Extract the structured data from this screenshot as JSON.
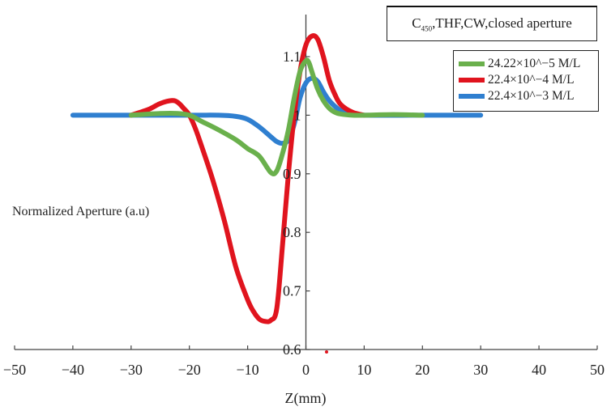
{
  "chart_data": {
    "type": "line",
    "title_main": "C",
    "title_sub": "450",
    "title_rest": ",THF,CW,closed aperture",
    "xlabel": "Z(mm)",
    "ylabel": "Normalized Aperture (a.u)",
    "xlim": [
      -50,
      50
    ],
    "ylim": [
      0.6,
      1.15
    ],
    "x_ticks": [
      -50,
      -40,
      -30,
      -20,
      -10,
      0,
      10,
      20,
      30,
      40,
      50
    ],
    "x_tick_labels": [
      "−50",
      "−40",
      "−30",
      "−20",
      "−10",
      "0",
      "10",
      "20",
      "30",
      "40",
      "50"
    ],
    "y_ticks": [
      0.6,
      0.7,
      0.8,
      0.9,
      1.0,
      1.1
    ],
    "y_tick_labels": [
      "0.6",
      "0.7",
      "0.8",
      "0.9",
      "1",
      "1.1"
    ],
    "grid": false,
    "legend_position": "top-right",
    "series": [
      {
        "name": "24.22×10^−5 M/L",
        "color": "#6ab04c",
        "x": [
          -30,
          -25,
          -22,
          -20,
          -18,
          -15,
          -12,
          -10,
          -8,
          -6,
          -5,
          -4,
          -3,
          -2,
          -1,
          0,
          0.5,
          1,
          2,
          3,
          4,
          5,
          6,
          8,
          10,
          15,
          20
        ],
        "y": [
          1.0,
          1.003,
          1.003,
          1.0,
          0.99,
          0.975,
          0.958,
          0.943,
          0.93,
          0.902,
          0.905,
          0.935,
          0.975,
          1.03,
          1.075,
          1.093,
          1.09,
          1.075,
          1.045,
          1.025,
          1.012,
          1.005,
          1.002,
          1.0,
          1.0,
          1.001,
          1.0
        ]
      },
      {
        "name": "22.4×10^−4 M/L",
        "color": "#e0141e",
        "x": [
          -30,
          -27,
          -25,
          -23,
          -22,
          -21,
          -20,
          -19,
          -18,
          -16,
          -14,
          -12,
          -10,
          -9,
          -8,
          -7,
          -6,
          -5,
          -4,
          -3,
          -2,
          -1,
          0,
          1,
          2,
          3,
          4,
          5,
          6,
          8,
          10
        ],
        "y": [
          1.0,
          1.01,
          1.02,
          1.025,
          1.022,
          1.012,
          1.0,
          0.978,
          0.95,
          0.89,
          0.82,
          0.74,
          0.685,
          0.665,
          0.652,
          0.648,
          0.65,
          0.67,
          0.78,
          0.9,
          1.0,
          1.075,
          1.12,
          1.135,
          1.13,
          1.1,
          1.06,
          1.035,
          1.018,
          1.005,
          1.0
        ]
      },
      {
        "name": "22.4×10^−3 M/L",
        "color": "#2f7fd0",
        "x": [
          -40,
          -30,
          -20,
          -15,
          -12,
          -10,
          -8,
          -6,
          -5,
          -4,
          -3,
          -2,
          -1,
          0,
          1,
          2,
          3,
          4,
          5,
          6,
          8,
          10,
          20,
          30
        ],
        "y": [
          1.0,
          1.0,
          1.0,
          1.0,
          0.998,
          0.993,
          0.98,
          0.963,
          0.955,
          0.952,
          0.958,
          0.985,
          1.03,
          1.055,
          1.063,
          1.058,
          1.04,
          1.025,
          1.015,
          1.008,
          1.002,
          1.0,
          1.0,
          1.0
        ]
      }
    ]
  }
}
